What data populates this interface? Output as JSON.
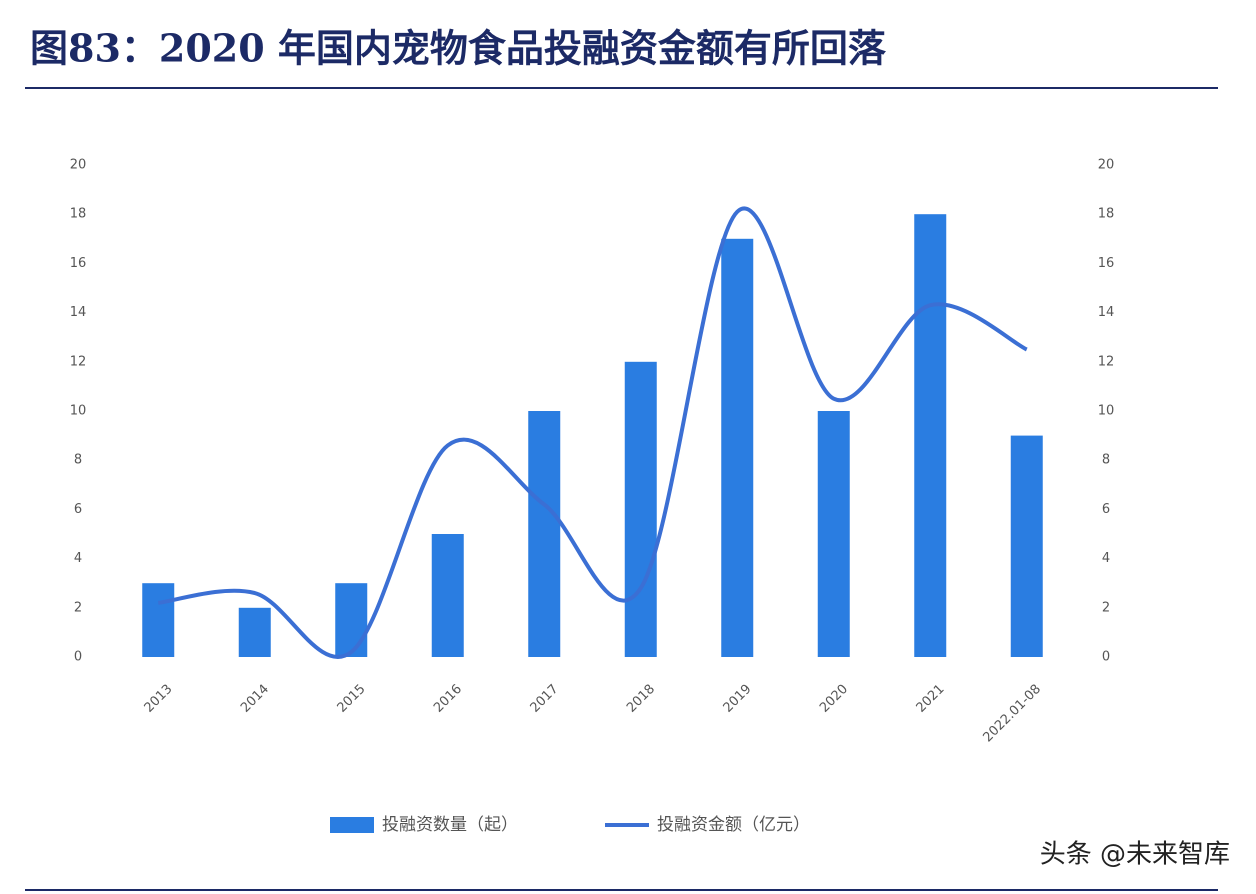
{
  "chart_data": {
    "type": "bar-line",
    "title": "图83：2020 年国内宠物食品投融资金额有所回落",
    "categories": [
      "2013",
      "2014",
      "2015",
      "2016",
      "2017",
      "2018",
      "2019",
      "2020",
      "2021",
      "2022.01-08"
    ],
    "series": [
      {
        "name": "投融资数量（起）",
        "type": "bar",
        "color": "#2a7de1",
        "values": [
          3,
          2,
          3,
          5,
          10,
          12,
          17,
          10,
          18,
          9
        ]
      },
      {
        "name": "投融资金额（亿元）",
        "type": "line",
        "axis": "y2",
        "color": "#3b6fd4",
        "values": [
          2.2,
          2.6,
          0.2,
          8.6,
          6.2,
          2.8,
          18.1,
          10.5,
          14.3,
          12.5
        ]
      }
    ],
    "ylim": [
      0,
      20
    ],
    "yticks": [
      0,
      2,
      4,
      6,
      8,
      10,
      12,
      14,
      16,
      18,
      20
    ],
    "y2lim": [
      0,
      20
    ],
    "y2ticks": [
      0,
      2,
      4,
      6,
      8,
      10,
      12,
      14,
      16,
      18,
      20
    ],
    "grid": false,
    "legend": "bottom",
    "watermark": "头条 @未来智库"
  }
}
